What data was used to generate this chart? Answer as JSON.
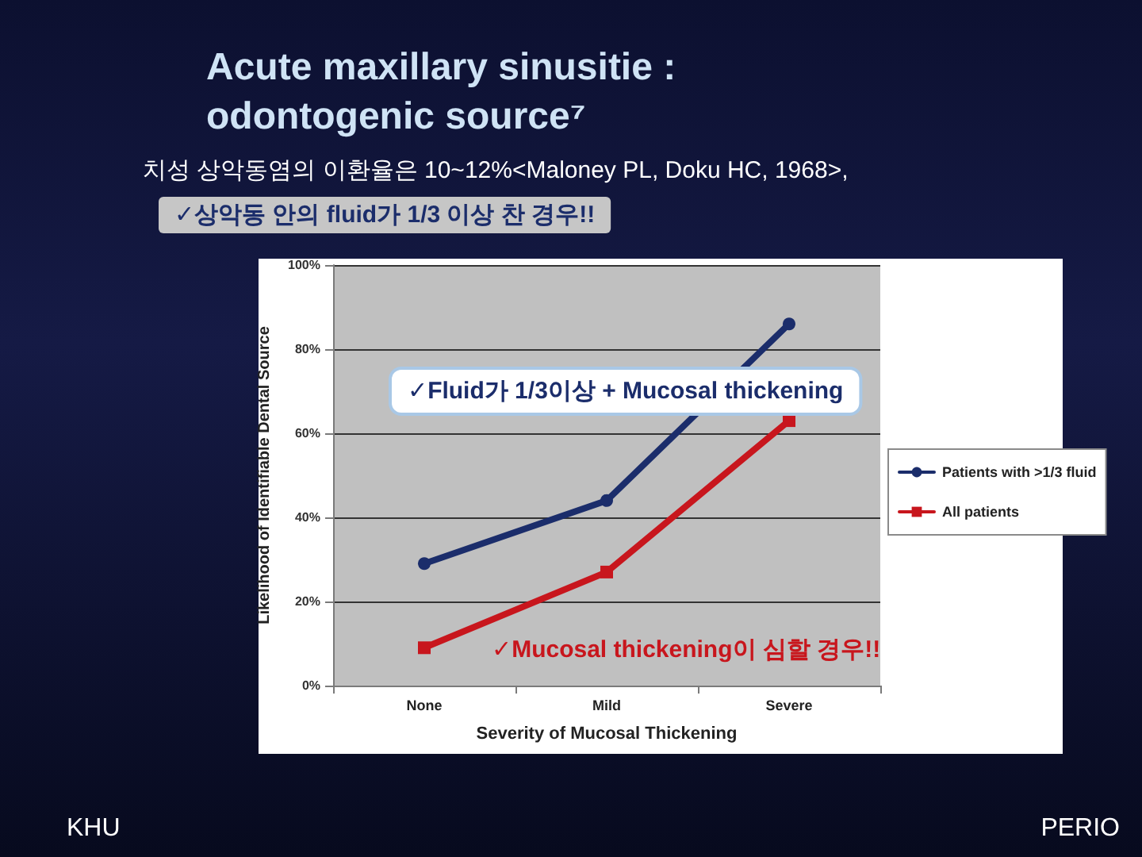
{
  "chart_data": {
    "type": "line",
    "title": "Acute maxillary sinusitie : odontogenic source⁷",
    "xlabel": "Severity of Mucosal Thickening",
    "ylabel": "Likelihood of Identifiable Dental Source",
    "categories": [
      "None",
      "Mild",
      "Severe"
    ],
    "series": [
      {
        "name": "Patients with >1/3 fluid",
        "color": "#1b2d6b",
        "marker": "circle",
        "values": [
          29,
          44,
          86
        ]
      },
      {
        "name": "All patients",
        "color": "#c8161d",
        "marker": "square",
        "values": [
          9,
          27,
          63
        ]
      }
    ],
    "ylim": [
      0,
      100
    ],
    "yticks": [
      {
        "value": 0,
        "label": "0%"
      },
      {
        "value": 20,
        "label": "20%"
      },
      {
        "value": 40,
        "label": "40%"
      },
      {
        "value": 60,
        "label": "60%"
      },
      {
        "value": 80,
        "label": "80%"
      },
      {
        "value": 100,
        "label": "100%"
      }
    ],
    "grid": "y",
    "legend": "right",
    "line_style": "solid",
    "annotations": [
      "치성 상악동염의 이환율은 10~12%<Maloney PL, Doku HC, 1968>,",
      "✓상악동 안의 fluid가 1/3 이상 찬 경우!!",
      "✓Fluid가 1/3이상 + Mucosal thickening",
      "✓Mucosal thickening이 심할 경우!!",
      "KHU",
      "PERIO"
    ]
  }
}
